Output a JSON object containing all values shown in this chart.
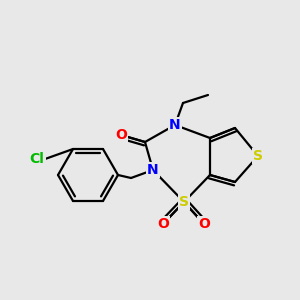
{
  "background_color": "#e8e8e8",
  "bond_color": "#000000",
  "bond_width": 1.6,
  "fig_width": 3.0,
  "fig_height": 3.0,
  "dpi": 100,
  "colors": {
    "S": "#cccc00",
    "N": "#0000ff",
    "O": "#ff0000",
    "Cl": "#00bb00",
    "C": "#000000"
  }
}
